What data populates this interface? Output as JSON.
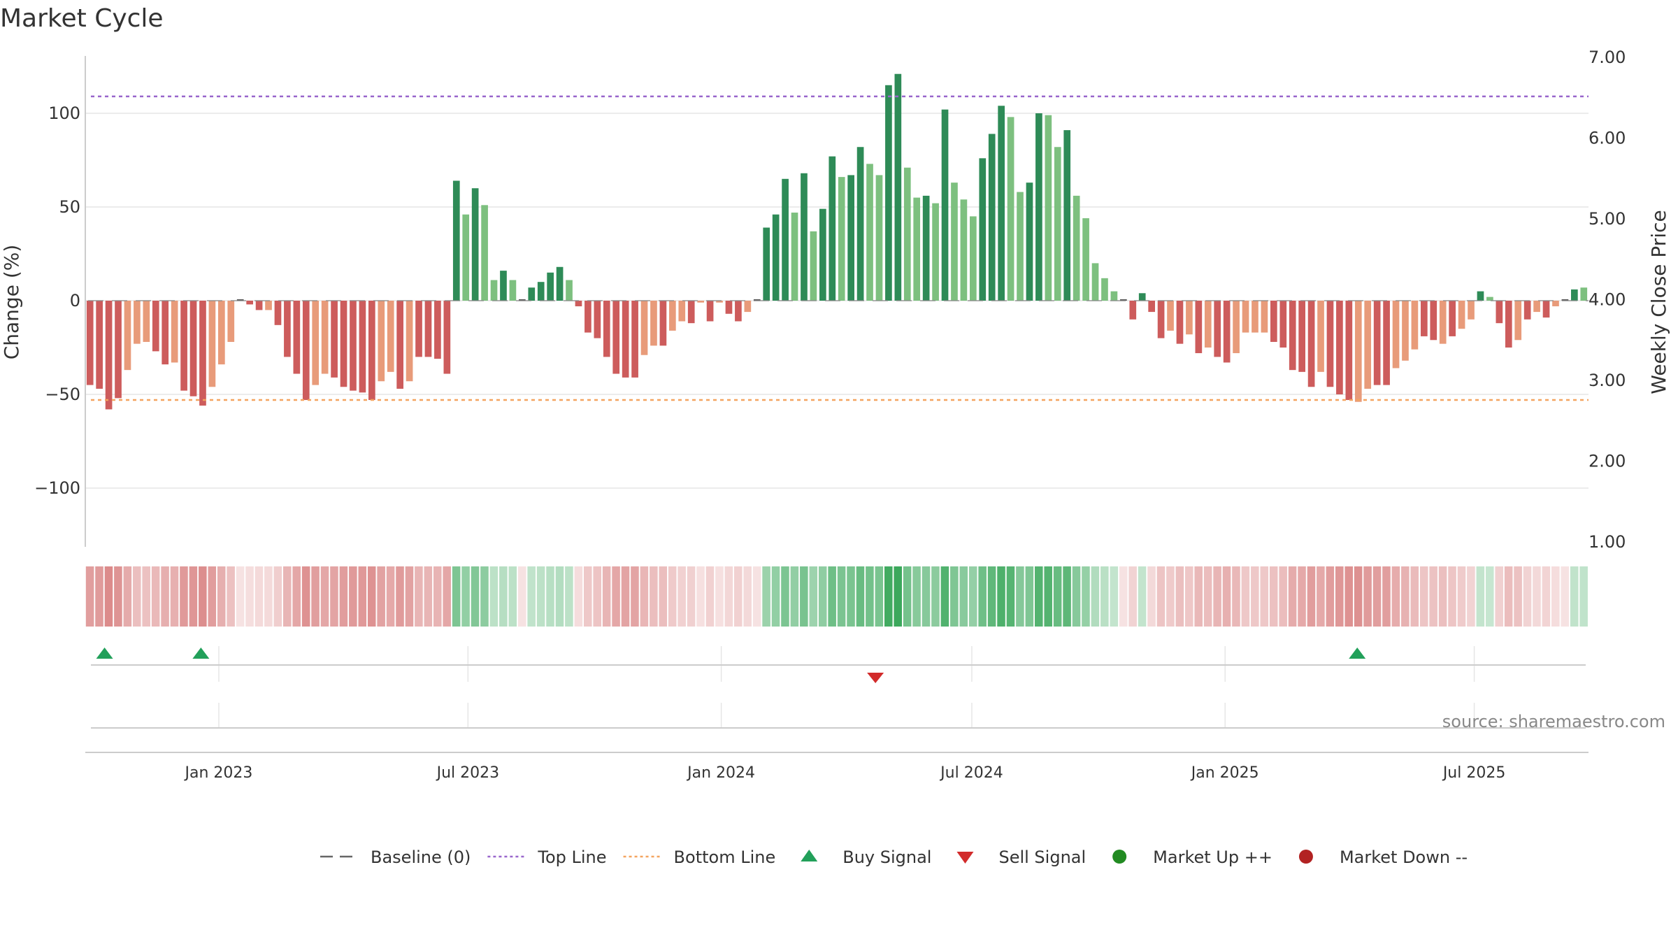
{
  "chart_data": {
    "type": "bar",
    "title": "Market Cycle",
    "ylabel_left": "Change (%)",
    "ylabel_right": "Weekly Close Price",
    "left_ticks": [
      "100",
      "50",
      "0",
      "−50",
      "−100"
    ],
    "left_tick_values": [
      100,
      50,
      0,
      -50,
      -100
    ],
    "ylim_left": [
      -130,
      130
    ],
    "right_ticks": [
      "7.00",
      "6.00",
      "5.00",
      "4.00",
      "3.00",
      "2.00",
      "1.00"
    ],
    "right_tick_values": [
      7,
      6,
      5,
      4,
      3,
      2,
      1
    ],
    "ylim_right": [
      1,
      7
    ],
    "x_start": "2022-09-26",
    "x_end": "2025-09-22",
    "x_ticks": [
      {
        "label": "Jan 2023",
        "date": "2023-01-01"
      },
      {
        "label": "Jul 2023",
        "date": "2023-07-01"
      },
      {
        "label": "Jan 2024",
        "date": "2024-01-01"
      },
      {
        "label": "Jul 2024",
        "date": "2024-07-01"
      },
      {
        "label": "Jan 2025",
        "date": "2025-01-01"
      },
      {
        "label": "Jul 2025",
        "date": "2025-07-01"
      }
    ],
    "top_line": 109,
    "bottom_line": -53,
    "baseline": 0,
    "colors": {
      "strong_up": "#2e8b57",
      "weak_up": "#7dc07f",
      "strong_down": "#cd5c5c",
      "weak_down": "#e89b7a",
      "top_line": "#9966cc",
      "bottom_line": "#f4a460",
      "baseline": "#888888",
      "buy": "#22a05a",
      "sell": "#d22b2b",
      "market_up": "#228b22",
      "market_down": "#b22222",
      "heat_up": "#3ca85c",
      "heat_down": "#cd5c5c"
    },
    "values": [
      -45,
      -47,
      -58,
      -52,
      -37,
      -23,
      -22,
      -27,
      -34,
      -33,
      -48,
      -51,
      -56,
      -46,
      -34,
      -22,
      0,
      -2,
      -5,
      -5,
      -13,
      -30,
      -39,
      -53,
      -45,
      -39,
      -41,
      -46,
      -48,
      -49,
      -53,
      -43,
      -38,
      -47,
      -43,
      -30,
      -30,
      -31,
      -39,
      64,
      46,
      60,
      51,
      11,
      16,
      11,
      0,
      7,
      10,
      15,
      18,
      11,
      -3,
      -17,
      -20,
      -30,
      -39,
      -41,
      -41,
      -29,
      -24,
      -24,
      -16,
      -11,
      -12,
      -1,
      -11,
      -1,
      -7,
      -11,
      -6,
      0,
      39,
      46,
      65,
      47,
      68,
      37,
      49,
      77,
      66,
      67,
      82,
      73,
      67,
      115,
      121,
      71,
      55,
      56,
      52,
      102,
      63,
      54,
      45,
      76,
      89,
      104,
      98,
      58,
      63,
      100,
      99,
      82,
      91,
      56,
      44,
      20,
      12,
      5,
      0,
      -10,
      4,
      -6,
      -20,
      -16,
      -23,
      -18,
      -28,
      -25,
      -30,
      -33,
      -28,
      -17,
      -17,
      -17,
      -22,
      -25,
      -37,
      -38,
      -46,
      -38,
      -46,
      -50,
      -53,
      -54,
      -47,
      -45,
      -45,
      -36,
      -32,
      -26,
      -19,
      -21,
      -23,
      -19,
      -15,
      -10,
      5,
      2,
      -12,
      -25,
      -21,
      -10,
      -6,
      -9,
      -3,
      0,
      6,
      7
    ],
    "strength": [
      2,
      2,
      2,
      2,
      1,
      1,
      1,
      2,
      2,
      1,
      2,
      2,
      2,
      1,
      1,
      1,
      2,
      2,
      2,
      1,
      2,
      2,
      2,
      2,
      1,
      1,
      2,
      2,
      2,
      2,
      2,
      1,
      1,
      2,
      1,
      2,
      2,
      2,
      2,
      2,
      1,
      2,
      1,
      1,
      2,
      1,
      2,
      2,
      2,
      2,
      2,
      1,
      2,
      2,
      2,
      2,
      2,
      2,
      2,
      1,
      1,
      2,
      1,
      1,
      2,
      1,
      2,
      1,
      2,
      2,
      1,
      2,
      2,
      2,
      2,
      1,
      2,
      1,
      2,
      2,
      1,
      2,
      2,
      1,
      1,
      2,
      2,
      1,
      1,
      2,
      1,
      2,
      1,
      1,
      1,
      2,
      2,
      2,
      1,
      1,
      2,
      2,
      1,
      1,
      2,
      1,
      1,
      1,
      1,
      1,
      1,
      2,
      2,
      2,
      2,
      1,
      2,
      1,
      2,
      1,
      2,
      2,
      1,
      1,
      1,
      1,
      2,
      2,
      2,
      2,
      2,
      1,
      2,
      2,
      2,
      1,
      1,
      2,
      2,
      1,
      1,
      1,
      2,
      2,
      1,
      2,
      1,
      1,
      2,
      1,
      2,
      2,
      1,
      2,
      1,
      2,
      1,
      2,
      2
    ],
    "buy_signals": [
      "2022-10-10",
      "2022-12-19",
      "2025-04-07"
    ],
    "sell_signals": [
      "2024-04-22"
    ],
    "legend": [
      {
        "label": "Baseline (0)",
        "symbol": "dash",
        "color": "#666666"
      },
      {
        "label": "Top Line",
        "symbol": "dot",
        "color": "#9966cc"
      },
      {
        "label": "Bottom Line",
        "symbol": "dot",
        "color": "#f4a460"
      },
      {
        "label": "Buy Signal",
        "symbol": "up",
        "color": "#22a05a"
      },
      {
        "label": "Sell Signal",
        "symbol": "down",
        "color": "#d22b2b"
      },
      {
        "label": "Market Up ++",
        "symbol": "circle",
        "color": "#228b22"
      },
      {
        "label": "Market Down --",
        "symbol": "circle",
        "color": "#b22222"
      }
    ],
    "source": "source: sharemaestro.com",
    "grid": true
  }
}
